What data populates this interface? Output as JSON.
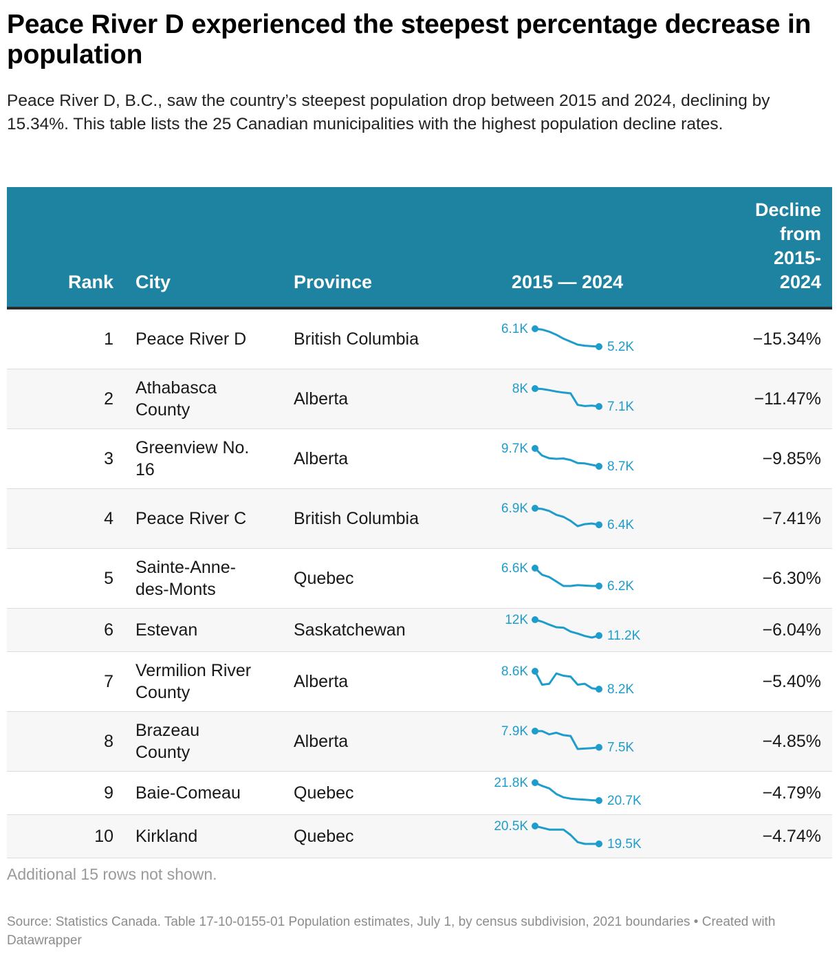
{
  "title": "Peace River D experienced the steepest percentage decrease in population",
  "subtitle": "Peace River D, B.C., saw the country’s steepest population drop between 2015 and 2024, declining by 15.34%. This table lists the 25 Canadian municipalities with the highest population decline rates.",
  "colors": {
    "header_bg": "#1e83a1",
    "sparkline": "#1e9ccc"
  },
  "chart_data": {
    "type": "table",
    "columns": {
      "rank": "Rank",
      "city": "City",
      "province": "Province",
      "sparkline": "2015 — 2024",
      "decline": "Decline from 2015-2024"
    },
    "sparkline_years": [
      2015,
      2016,
      2017,
      2018,
      2019,
      2020,
      2021,
      2022,
      2023,
      2024
    ],
    "rows": [
      {
        "rank": "1",
        "city": "Peace River D",
        "province": "British Columbia",
        "decline": "−15.34%",
        "start_label": "6.1K",
        "end_label": "5.2K",
        "values": [
          6.1,
          6.06,
          5.95,
          5.8,
          5.6,
          5.45,
          5.3,
          5.25,
          5.22,
          5.2
        ]
      },
      {
        "rank": "2",
        "city": "Athabasca County",
        "province": "Alberta",
        "decline": "−11.47%",
        "start_label": "8K",
        "end_label": "7.1K",
        "values": [
          8.0,
          7.98,
          7.92,
          7.85,
          7.8,
          7.76,
          7.18,
          7.12,
          7.14,
          7.1
        ]
      },
      {
        "rank": "3",
        "city": "Greenview No. 16",
        "province": "Alberta",
        "decline": "−9.85%",
        "start_label": "9.7K",
        "end_label": "8.7K",
        "values": [
          9.7,
          9.3,
          9.15,
          9.12,
          9.14,
          9.05,
          8.88,
          8.86,
          8.78,
          8.7
        ]
      },
      {
        "rank": "4",
        "city": "Peace River C",
        "province": "British Columbia",
        "decline": "−7.41%",
        "start_label": "6.9K",
        "end_label": "6.4K",
        "values": [
          6.9,
          6.88,
          6.82,
          6.7,
          6.64,
          6.52,
          6.36,
          6.42,
          6.44,
          6.4
        ]
      },
      {
        "rank": "5",
        "city": "Sainte-Anne-des-Monts",
        "province": "Quebec",
        "decline": "−6.30%",
        "start_label": "6.6K",
        "end_label": "6.2K",
        "values": [
          6.6,
          6.45,
          6.4,
          6.3,
          6.2,
          6.2,
          6.22,
          6.21,
          6.2,
          6.2
        ]
      },
      {
        "rank": "6",
        "city": "Estevan",
        "province": "Saskatchewan",
        "decline": "−6.04%",
        "start_label": "12K",
        "end_label": "11.2K",
        "values": [
          12.0,
          11.9,
          11.75,
          11.62,
          11.6,
          11.4,
          11.3,
          11.18,
          11.1,
          11.2
        ]
      },
      {
        "rank": "7",
        "city": "Vermilion River County",
        "province": "Alberta",
        "decline": "−5.40%",
        "start_label": "8.6K",
        "end_label": "8.2K",
        "values": [
          8.6,
          8.3,
          8.32,
          8.55,
          8.5,
          8.48,
          8.3,
          8.32,
          8.22,
          8.2
        ]
      },
      {
        "rank": "8",
        "city": "Brazeau County",
        "province": "Alberta",
        "decline": "−4.85%",
        "start_label": "7.9K",
        "end_label": "7.5K",
        "values": [
          7.9,
          7.9,
          7.82,
          7.86,
          7.8,
          7.78,
          7.46,
          7.47,
          7.48,
          7.5
        ]
      },
      {
        "rank": "9",
        "city": "Baie-Comeau",
        "province": "Quebec",
        "decline": "−4.79%",
        "start_label": "21.8K",
        "end_label": "20.7K",
        "values": [
          21.8,
          21.6,
          21.45,
          21.1,
          20.9,
          20.82,
          20.78,
          20.75,
          20.72,
          20.7
        ]
      },
      {
        "rank": "10",
        "city": "Kirkland",
        "province": "Quebec",
        "decline": "−4.74%",
        "start_label": "20.5K",
        "end_label": "19.5K",
        "values": [
          20.5,
          20.4,
          20.3,
          20.3,
          20.3,
          20.0,
          19.6,
          19.5,
          19.5,
          19.5
        ]
      }
    ]
  },
  "note": "Additional 15 rows not shown.",
  "source": "Source: Statistics Canada. Table 17-10-0155-01 Population estimates, July 1, by census subdivision, 2021 boundaries • Created with Datawrapper"
}
